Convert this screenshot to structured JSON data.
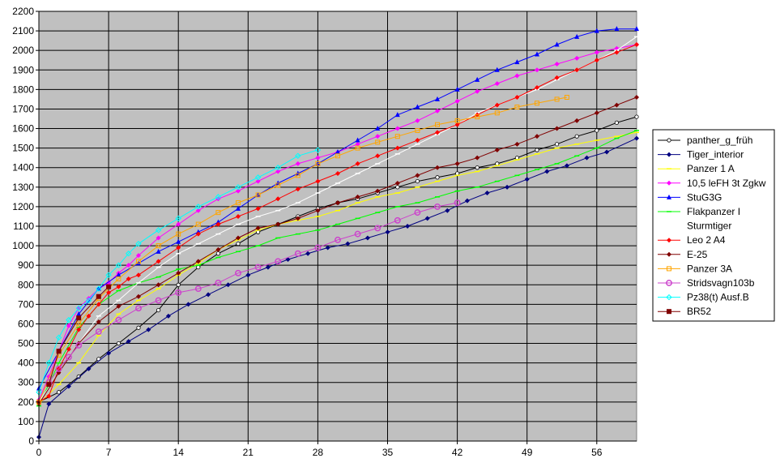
{
  "chart_data": {
    "type": "line",
    "title": "",
    "xlabel": "",
    "ylabel": "",
    "xlim": [
      0,
      60
    ],
    "ylim": [
      0,
      2200
    ],
    "x_ticks": [
      "0",
      "7",
      "14",
      "21",
      "28",
      "35",
      "42",
      "49",
      "56"
    ],
    "y_ticks": [
      "0",
      "100",
      "200",
      "300",
      "400",
      "500",
      "600",
      "700",
      "800",
      "900",
      "1000",
      "1100",
      "1200",
      "1300",
      "1400",
      "1500",
      "1600",
      "1700",
      "1800",
      "1900",
      "2000",
      "2100",
      "2200"
    ],
    "grid": true,
    "background": "#c0c0c0",
    "legend_position": "right",
    "series": [
      {
        "name": "panther_g_früh",
        "color": "#000000",
        "marker": "circle-open",
        "x": [
          0,
          2,
          4,
          6,
          8,
          10,
          12,
          14,
          16,
          18,
          20,
          22,
          24,
          26,
          28,
          30,
          32,
          34,
          36,
          38,
          40,
          42,
          44,
          46,
          48,
          50,
          52,
          54,
          56,
          58,
          60
        ],
        "y": [
          200,
          250,
          330,
          420,
          500,
          580,
          670,
          800,
          890,
          960,
          1010,
          1070,
          1110,
          1150,
          1190,
          1220,
          1240,
          1270,
          1300,
          1330,
          1350,
          1370,
          1400,
          1420,
          1450,
          1490,
          1520,
          1560,
          1590,
          1630,
          1660
        ]
      },
      {
        "name": "Tiger_interior",
        "color": "#000080",
        "marker": "diamond",
        "x": [
          0,
          1,
          3,
          5,
          7,
          9,
          11,
          13,
          15,
          17,
          19,
          21,
          23,
          25,
          27,
          29,
          31,
          33,
          35,
          37,
          39,
          41,
          43,
          45,
          47,
          49,
          51,
          53,
          55,
          57,
          60
        ],
        "y": [
          20,
          190,
          280,
          370,
          450,
          510,
          570,
          640,
          700,
          750,
          800,
          850,
          890,
          930,
          960,
          990,
          1010,
          1040,
          1070,
          1100,
          1140,
          1180,
          1230,
          1270,
          1300,
          1340,
          1380,
          1410,
          1450,
          1480,
          1550
        ]
      },
      {
        "name": "Panzer 1 A",
        "color": "#ffff00",
        "marker": "dash",
        "x": [
          0,
          2,
          4,
          6,
          8,
          10,
          12,
          14,
          16,
          18,
          20,
          22,
          24,
          26,
          28,
          30,
          32,
          34,
          36,
          38,
          40,
          42,
          44,
          46,
          48,
          50,
          52,
          54,
          56,
          58,
          60
        ],
        "y": [
          190,
          290,
          400,
          540,
          650,
          720,
          780,
          850,
          910,
          980,
          1030,
          1080,
          1110,
          1130,
          1150,
          1180,
          1220,
          1250,
          1270,
          1300,
          1330,
          1360,
          1380,
          1410,
          1440,
          1470,
          1500,
          1520,
          1540,
          1560,
          1580
        ]
      },
      {
        "name": "10,5 leFH 3t Zgkw",
        "color": "#ff00ff",
        "marker": "diamond",
        "x": [
          0,
          1,
          2,
          3,
          4,
          5,
          6,
          7,
          8,
          9,
          10,
          12,
          14,
          16,
          18,
          20,
          22,
          24,
          26,
          28,
          30,
          32,
          34,
          36,
          38,
          40,
          42,
          44,
          46,
          48,
          50,
          52,
          54,
          56,
          58,
          60
        ],
        "y": [
          210,
          330,
          460,
          590,
          680,
          730,
          780,
          810,
          860,
          900,
          950,
          1040,
          1110,
          1180,
          1240,
          1280,
          1330,
          1380,
          1420,
          1450,
          1480,
          1520,
          1560,
          1600,
          1640,
          1690,
          1740,
          1790,
          1830,
          1870,
          1900,
          1930,
          1960,
          1990,
          2010,
          2030
        ]
      },
      {
        "name": "StuG3G",
        "color": "#0000ff",
        "marker": "triangle",
        "x": [
          0,
          2,
          4,
          6,
          8,
          10,
          12,
          14,
          16,
          18,
          20,
          22,
          24,
          26,
          28,
          30,
          32,
          34,
          36,
          38,
          40,
          42,
          44,
          46,
          48,
          50,
          52,
          54,
          56,
          58,
          60
        ],
        "y": [
          270,
          460,
          650,
          780,
          850,
          910,
          970,
          1020,
          1070,
          1120,
          1190,
          1260,
          1320,
          1370,
          1420,
          1480,
          1540,
          1600,
          1670,
          1710,
          1750,
          1800,
          1850,
          1900,
          1940,
          1980,
          2030,
          2070,
          2100,
          2110,
          2110
        ]
      },
      {
        "name": "Flakpanzer I",
        "color": "#00ff00",
        "marker": "dash",
        "x": [
          0,
          2,
          4,
          6,
          8,
          10,
          12,
          14,
          16,
          18,
          20,
          22,
          24,
          26,
          28,
          30,
          32,
          34,
          36,
          38,
          40,
          42,
          44,
          46,
          48,
          50,
          52,
          54,
          56,
          58,
          60
        ],
        "y": [
          180,
          400,
          580,
          700,
          770,
          810,
          840,
          880,
          900,
          940,
          970,
          1000,
          1040,
          1060,
          1080,
          1110,
          1140,
          1170,
          1200,
          1220,
          1250,
          1280,
          1300,
          1330,
          1360,
          1390,
          1420,
          1460,
          1500,
          1550,
          1590
        ]
      },
      {
        "name": "Sturmtiger",
        "color": "#ffffff",
        "marker": "dash",
        "x": [
          0,
          2,
          4,
          6,
          8,
          10,
          12,
          14,
          16,
          18,
          20,
          22,
          24,
          26,
          28,
          30,
          32,
          34,
          36,
          38,
          40,
          42,
          44,
          46,
          48,
          50,
          52,
          54,
          56,
          58,
          60
        ],
        "y": [
          200,
          350,
          500,
          640,
          720,
          810,
          890,
          960,
          1010,
          1060,
          1110,
          1150,
          1180,
          1220,
          1270,
          1320,
          1370,
          1420,
          1470,
          1520,
          1570,
          1620,
          1680,
          1720,
          1760,
          1800,
          1850,
          1900,
          1950,
          2000,
          2070
        ]
      },
      {
        "name": "Leo 2 A4",
        "color": "#ff0000",
        "marker": "diamond",
        "x": [
          0,
          1,
          2,
          3,
          4,
          5,
          6,
          7,
          8,
          9,
          10,
          12,
          14,
          16,
          18,
          20,
          22,
          24,
          26,
          28,
          30,
          32,
          34,
          36,
          38,
          40,
          42,
          44,
          46,
          48,
          50,
          52,
          54,
          56,
          58,
          60
        ],
        "y": [
          200,
          230,
          370,
          470,
          570,
          640,
          700,
          760,
          790,
          830,
          850,
          920,
          990,
          1060,
          1110,
          1150,
          1190,
          1240,
          1290,
          1330,
          1370,
          1420,
          1460,
          1500,
          1540,
          1580,
          1620,
          1670,
          1720,
          1760,
          1810,
          1860,
          1900,
          1950,
          1990,
          2030
        ]
      },
      {
        "name": "E-25",
        "color": "#800000",
        "marker": "diamond",
        "x": [
          0,
          2,
          4,
          6,
          8,
          10,
          12,
          14,
          16,
          18,
          20,
          22,
          24,
          26,
          28,
          30,
          32,
          34,
          36,
          38,
          40,
          42,
          44,
          46,
          48,
          50,
          52,
          54,
          56,
          58,
          60
        ],
        "y": [
          190,
          350,
          500,
          610,
          690,
          740,
          800,
          860,
          920,
          980,
          1040,
          1090,
          1110,
          1140,
          1180,
          1220,
          1250,
          1280,
          1320,
          1360,
          1400,
          1420,
          1450,
          1490,
          1520,
          1560,
          1600,
          1640,
          1680,
          1720,
          1760
        ]
      },
      {
        "name": "Panzer 3A",
        "color": "#ffa500",
        "marker": "square-open",
        "x": [
          0,
          2,
          4,
          6,
          8,
          10,
          12,
          14,
          16,
          18,
          20,
          22,
          24,
          26,
          28,
          30,
          32,
          34,
          36,
          38,
          40,
          42,
          44,
          46,
          48,
          50,
          52,
          53
        ],
        "y": [
          200,
          440,
          600,
          730,
          830,
          920,
          1000,
          1060,
          1110,
          1170,
          1220,
          1260,
          1310,
          1360,
          1420,
          1460,
          1500,
          1530,
          1560,
          1590,
          1620,
          1640,
          1660,
          1680,
          1710,
          1730,
          1750,
          1760
        ]
      },
      {
        "name": "Stridsvagn103b",
        "color": "#cc44cc",
        "marker": "circle-open-large",
        "x": [
          1,
          2,
          3,
          4,
          6,
          8,
          10,
          12,
          14,
          16,
          18,
          20,
          22,
          24,
          26,
          28,
          30,
          32,
          34,
          36,
          38,
          40,
          42
        ],
        "y": [
          300,
          370,
          430,
          490,
          560,
          620,
          680,
          720,
          760,
          780,
          810,
          860,
          890,
          920,
          960,
          990,
          1030,
          1060,
          1090,
          1130,
          1170,
          1200,
          1220
        ]
      },
      {
        "name": "Pz38(t) Ausf.B",
        "color": "#00ffff",
        "marker": "diamond-open",
        "x": [
          0,
          1,
          2,
          3,
          4,
          5,
          6,
          7,
          8,
          9,
          10,
          12,
          14,
          16,
          18,
          20,
          22,
          24,
          26,
          28
        ],
        "y": [
          250,
          400,
          530,
          620,
          680,
          720,
          780,
          850,
          900,
          960,
          1010,
          1080,
          1140,
          1200,
          1250,
          1300,
          1350,
          1400,
          1460,
          1490
        ]
      },
      {
        "name": "BR52",
        "color": "#800000",
        "marker": "square",
        "x": [
          1,
          2,
          4,
          6,
          7
        ],
        "y": [
          290,
          460,
          630,
          740,
          790
        ]
      }
    ]
  }
}
